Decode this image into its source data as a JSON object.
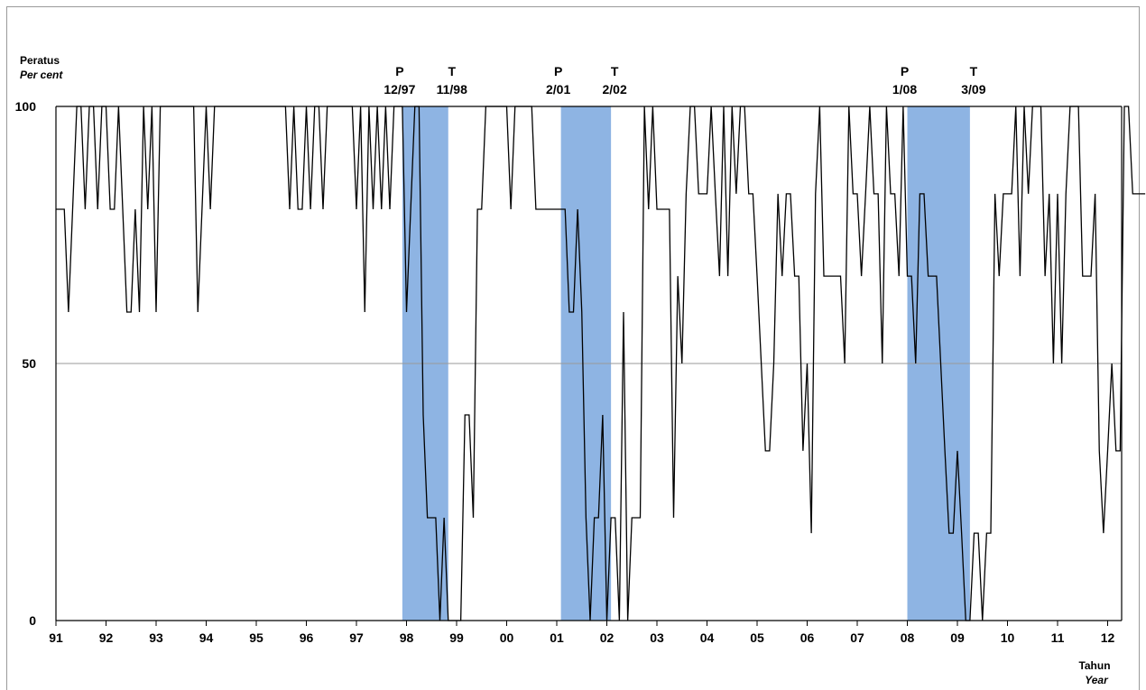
{
  "chart_data": {
    "type": "line",
    "y_label": "Peratus",
    "y_label_en": "Per cent",
    "x_label": "Tahun",
    "x_label_en": "Year",
    "ylim": [
      0,
      100
    ],
    "y_ticks": [
      "0",
      "50",
      "100"
    ],
    "gridlines_at": [
      50
    ],
    "x_ticks": [
      "91",
      "92",
      "93",
      "94",
      "95",
      "96",
      "97",
      "98",
      "99",
      "00",
      "01",
      "02",
      "03",
      "04",
      "05",
      "06",
      "07",
      "08",
      "09",
      "10",
      "11",
      "12"
    ],
    "recessions": [
      {
        "peak": "P",
        "peak_date": "12/97",
        "trough": "T",
        "trough_date": "11/98",
        "start_month": 83,
        "end_month": 94
      },
      {
        "peak": "P",
        "peak_date": "2/01",
        "trough": "T",
        "trough_date": "2/02",
        "start_month": 121,
        "end_month": 133
      },
      {
        "peak": "P",
        "peak_date": "1/08",
        "trough": "T",
        "trough_date": "3/09",
        "start_month": 204,
        "end_month": 219
      }
    ],
    "shade_color": "#8EB4E3",
    "line_color": "#000000",
    "grid_color": "#9a9a9a",
    "series": [
      {
        "start": "1991-01",
        "frequency": "monthly",
        "values": [
          80,
          80,
          80,
          60,
          80,
          100,
          100,
          80,
          100,
          100,
          80,
          100,
          100,
          80,
          80,
          100,
          80,
          60,
          60,
          80,
          60,
          100,
          80,
          100,
          60,
          100,
          100,
          100,
          100,
          100,
          100,
          100,
          100,
          100,
          60,
          80,
          100,
          80,
          100,
          100,
          100,
          100,
          100,
          100,
          100,
          100,
          100,
          100,
          100,
          100,
          100,
          100,
          100,
          100,
          100,
          100,
          80,
          100,
          80,
          80,
          100,
          80,
          100,
          100,
          80,
          100,
          100,
          100,
          100,
          100,
          100,
          100,
          80,
          100,
          60,
          100,
          80,
          100,
          80,
          100,
          80,
          100,
          100,
          100,
          60,
          80,
          100,
          100,
          40,
          20,
          20,
          20,
          0,
          20,
          0,
          0,
          0,
          0,
          40,
          40,
          20,
          80,
          80,
          100,
          100,
          100,
          100,
          100,
          100,
          80,
          100,
          100,
          100,
          100,
          100,
          80,
          80,
          80,
          80,
          80,
          80,
          80,
          80,
          60,
          60,
          80,
          60,
          20,
          0,
          20,
          20,
          40,
          0,
          20,
          20,
          0,
          60,
          0,
          20,
          20,
          20,
          100,
          80,
          100,
          80,
          80,
          80,
          80,
          20,
          67,
          50,
          83,
          100,
          100,
          83,
          83,
          83,
          100,
          83,
          67,
          100,
          67,
          100,
          83,
          100,
          100,
          83,
          83,
          67,
          50,
          33,
          33,
          50,
          83,
          67,
          83,
          83,
          67,
          67,
          33,
          50,
          17,
          83,
          100,
          67,
          67,
          67,
          67,
          67,
          50,
          100,
          83,
          83,
          67,
          83,
          100,
          83,
          83,
          50,
          100,
          83,
          83,
          67,
          100,
          67,
          67,
          50,
          83,
          83,
          67,
          67,
          67,
          50,
          33,
          17,
          17,
          33,
          17,
          0,
          0,
          17,
          17,
          0,
          17,
          17,
          83,
          67,
          83,
          83,
          83,
          100,
          67,
          100,
          83,
          100,
          100,
          100,
          67,
          83,
          50,
          83,
          50,
          83,
          100,
          100,
          100,
          67,
          67,
          67,
          83,
          33,
          17,
          33,
          50,
          33,
          33,
          100,
          100,
          83,
          83,
          83,
          83
        ]
      }
    ]
  }
}
